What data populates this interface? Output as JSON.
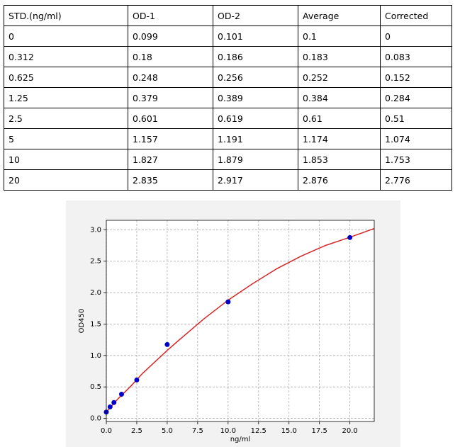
{
  "table": {
    "rows": [
      [
        "STD.(ng/ml)",
        "OD-1",
        "OD-2",
        "Average",
        "Corrected"
      ],
      [
        "0",
        "0.099",
        "0.101",
        "0.1",
        "0"
      ],
      [
        "0.312",
        "0.18",
        "0.186",
        "0.183",
        "0.083"
      ],
      [
        "0.625",
        "0.248",
        "0.256",
        "0.252",
        "0.152"
      ],
      [
        "1.25",
        "0.379",
        "0.389",
        "0.384",
        "0.284"
      ],
      [
        "2.5",
        "0.601",
        "0.619",
        "0.61",
        "0.51"
      ],
      [
        "5",
        "1.157",
        "1.191",
        "1.174",
        "1.074"
      ],
      [
        "10",
        "1.827",
        "1.879",
        "1.853",
        "1.753"
      ],
      [
        "20",
        "2.835",
        "2.917",
        "2.876",
        "2.776"
      ]
    ]
  },
  "chart_data": {
    "type": "scatter",
    "xlabel": "ng/ml",
    "ylabel": "OD450",
    "xlim": [
      0,
      22
    ],
    "ylim": [
      -0.05,
      3.15
    ],
    "xticks": [
      {
        "value": 0,
        "label": "0.0"
      },
      {
        "value": 2.5,
        "label": "2.5"
      },
      {
        "value": 5,
        "label": "5.0"
      },
      {
        "value": 7.5,
        "label": "7.5"
      },
      {
        "value": 10,
        "label": "10.0"
      },
      {
        "value": 12.5,
        "label": "12.5"
      },
      {
        "value": 15,
        "label": "15.0"
      },
      {
        "value": 17.5,
        "label": "17.5"
      },
      {
        "value": 20,
        "label": "20.0"
      }
    ],
    "yticks": [
      {
        "value": 0,
        "label": "0.0"
      },
      {
        "value": 0.5,
        "label": "0.5"
      },
      {
        "value": 1,
        "label": "1.0"
      },
      {
        "value": 1.5,
        "label": "1.5"
      },
      {
        "value": 2,
        "label": "2.0"
      },
      {
        "value": 2.5,
        "label": "2.5"
      },
      {
        "value": 3,
        "label": "3.0"
      }
    ],
    "grid": true,
    "series": [
      {
        "type": "line",
        "color": "#d62728",
        "x": [
          0,
          1,
          2,
          3,
          4,
          5,
          6,
          8,
          10,
          12,
          14,
          16,
          18,
          20,
          22
        ],
        "values": [
          0.1,
          0.32,
          0.51,
          0.72,
          0.9,
          1.08,
          1.25,
          1.58,
          1.88,
          2.14,
          2.38,
          2.58,
          2.75,
          2.88,
          3.02
        ]
      },
      {
        "type": "scatter",
        "color": "#0000cc",
        "x": [
          0,
          0.312,
          0.625,
          1.25,
          2.5,
          5,
          10,
          20
        ],
        "values": [
          0.1,
          0.183,
          0.252,
          0.384,
          0.61,
          1.174,
          1.853,
          2.876
        ]
      }
    ]
  }
}
